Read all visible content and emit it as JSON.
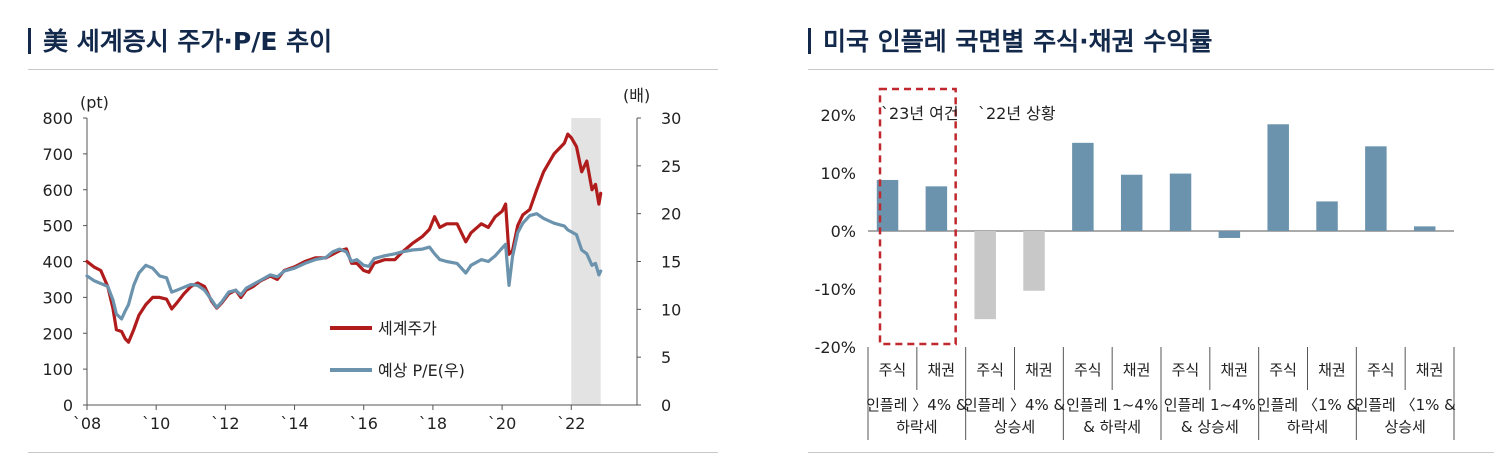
{
  "left_chart": {
    "title": "美 세계증시 주가·P/E  추이",
    "chart_data": {
      "type": "line",
      "y_left_unit": "(pt)",
      "y_right_unit": "(배)",
      "y_left_ticks": [
        "0",
        "100",
        "200",
        "300",
        "400",
        "500",
        "600",
        "700",
        "800"
      ],
      "y_right_ticks": [
        "0",
        "5",
        "10",
        "15",
        "20",
        "25",
        "30"
      ],
      "ylim_left": [
        0,
        800
      ],
      "ylim_right": [
        0,
        30
      ],
      "xlim": [
        2008,
        2023.9
      ],
      "x_ticks": [
        {
          "year": 2008,
          "label": "`08"
        },
        {
          "year": 2010,
          "label": "`10"
        },
        {
          "year": 2012,
          "label": "`12"
        },
        {
          "year": 2014,
          "label": "`14"
        },
        {
          "year": 2016,
          "label": "`16"
        },
        {
          "year": 2018,
          "label": "`18"
        },
        {
          "year": 2020,
          "label": "`20"
        },
        {
          "year": 2022,
          "label": "`22"
        }
      ],
      "shaded_period": [
        2022.0,
        2022.85
      ],
      "legend_position": "middle-right",
      "series": [
        {
          "name": "세계주가",
          "axis": "left",
          "color": "#b01c1c",
          "points": [
            [
              2008.0,
              400
            ],
            [
              2008.2,
              385
            ],
            [
              2008.4,
              375
            ],
            [
              2008.6,
              330
            ],
            [
              2008.75,
              270
            ],
            [
              2008.85,
              210
            ],
            [
              2009.0,
              205
            ],
            [
              2009.1,
              185
            ],
            [
              2009.2,
              175
            ],
            [
              2009.35,
              210
            ],
            [
              2009.5,
              250
            ],
            [
              2009.7,
              280
            ],
            [
              2009.9,
              300
            ],
            [
              2010.1,
              300
            ],
            [
              2010.3,
              295
            ],
            [
              2010.45,
              268
            ],
            [
              2010.6,
              285
            ],
            [
              2010.8,
              310
            ],
            [
              2011.0,
              330
            ],
            [
              2011.2,
              340
            ],
            [
              2011.4,
              330
            ],
            [
              2011.6,
              290
            ],
            [
              2011.75,
              270
            ],
            [
              2011.9,
              285
            ],
            [
              2012.1,
              310
            ],
            [
              2012.3,
              320
            ],
            [
              2012.45,
              300
            ],
            [
              2012.6,
              320
            ],
            [
              2012.8,
              330
            ],
            [
              2013.0,
              345
            ],
            [
              2013.3,
              360
            ],
            [
              2013.5,
              350
            ],
            [
              2013.7,
              375
            ],
            [
              2014.0,
              385
            ],
            [
              2014.3,
              400
            ],
            [
              2014.6,
              410
            ],
            [
              2014.9,
              410
            ],
            [
              2015.1,
              420
            ],
            [
              2015.3,
              430
            ],
            [
              2015.5,
              435
            ],
            [
              2015.65,
              395
            ],
            [
              2015.8,
              395
            ],
            [
              2016.0,
              375
            ],
            [
              2016.15,
              370
            ],
            [
              2016.3,
              395
            ],
            [
              2016.6,
              405
            ],
            [
              2016.9,
              405
            ],
            [
              2017.1,
              425
            ],
            [
              2017.4,
              450
            ],
            [
              2017.7,
              470
            ],
            [
              2017.9,
              490
            ],
            [
              2018.05,
              525
            ],
            [
              2018.2,
              495
            ],
            [
              2018.4,
              505
            ],
            [
              2018.7,
              505
            ],
            [
              2018.95,
              455
            ],
            [
              2019.1,
              480
            ],
            [
              2019.4,
              505
            ],
            [
              2019.6,
              495
            ],
            [
              2019.8,
              525
            ],
            [
              2020.0,
              540
            ],
            [
              2020.1,
              560
            ],
            [
              2020.2,
              420
            ],
            [
              2020.3,
              430
            ],
            [
              2020.45,
              500
            ],
            [
              2020.6,
              530
            ],
            [
              2020.8,
              545
            ],
            [
              2021.0,
              600
            ],
            [
              2021.2,
              650
            ],
            [
              2021.5,
              700
            ],
            [
              2021.8,
              730
            ],
            [
              2021.9,
              755
            ],
            [
              2022.0,
              745
            ],
            [
              2022.15,
              720
            ],
            [
              2022.3,
              650
            ],
            [
              2022.45,
              680
            ],
            [
              2022.6,
              600
            ],
            [
              2022.7,
              615
            ],
            [
              2022.8,
              560
            ],
            [
              2022.85,
              590
            ]
          ]
        },
        {
          "name": "예상 P/E(우)",
          "axis": "right",
          "color": "#6b93ad",
          "points": [
            [
              2008.0,
              13.5
            ],
            [
              2008.2,
              13.0
            ],
            [
              2008.4,
              12.7
            ],
            [
              2008.6,
              12.4
            ],
            [
              2008.75,
              11.0
            ],
            [
              2008.85,
              9.5
            ],
            [
              2009.0,
              9.0
            ],
            [
              2009.1,
              9.8
            ],
            [
              2009.2,
              10.5
            ],
            [
              2009.35,
              12.5
            ],
            [
              2009.5,
              13.8
            ],
            [
              2009.7,
              14.6
            ],
            [
              2009.9,
              14.3
            ],
            [
              2010.1,
              13.5
            ],
            [
              2010.3,
              13.3
            ],
            [
              2010.45,
              11.8
            ],
            [
              2010.6,
              12.0
            ],
            [
              2010.8,
              12.3
            ],
            [
              2011.0,
              12.6
            ],
            [
              2011.2,
              12.5
            ],
            [
              2011.4,
              12.0
            ],
            [
              2011.6,
              11.0
            ],
            [
              2011.75,
              10.2
            ],
            [
              2011.9,
              10.8
            ],
            [
              2012.1,
              11.8
            ],
            [
              2012.3,
              12.0
            ],
            [
              2012.45,
              11.5
            ],
            [
              2012.6,
              12.2
            ],
            [
              2012.8,
              12.6
            ],
            [
              2013.0,
              13.0
            ],
            [
              2013.3,
              13.6
            ],
            [
              2013.5,
              13.4
            ],
            [
              2013.7,
              14.0
            ],
            [
              2014.0,
              14.3
            ],
            [
              2014.3,
              14.8
            ],
            [
              2014.6,
              15.2
            ],
            [
              2014.9,
              15.4
            ],
            [
              2015.1,
              16.0
            ],
            [
              2015.3,
              16.3
            ],
            [
              2015.5,
              16.0
            ],
            [
              2015.65,
              15.0
            ],
            [
              2015.8,
              15.2
            ],
            [
              2016.0,
              14.6
            ],
            [
              2016.15,
              14.5
            ],
            [
              2016.3,
              15.3
            ],
            [
              2016.6,
              15.6
            ],
            [
              2016.9,
              15.8
            ],
            [
              2017.1,
              16.0
            ],
            [
              2017.4,
              16.2
            ],
            [
              2017.7,
              16.3
            ],
            [
              2017.9,
              16.5
            ],
            [
              2018.05,
              15.8
            ],
            [
              2018.2,
              15.2
            ],
            [
              2018.4,
              15.0
            ],
            [
              2018.7,
              14.8
            ],
            [
              2018.95,
              13.8
            ],
            [
              2019.1,
              14.6
            ],
            [
              2019.4,
              15.2
            ],
            [
              2019.6,
              15.0
            ],
            [
              2019.8,
              15.6
            ],
            [
              2020.0,
              16.4
            ],
            [
              2020.1,
              16.8
            ],
            [
              2020.2,
              12.5
            ],
            [
              2020.3,
              15.5
            ],
            [
              2020.45,
              18.0
            ],
            [
              2020.6,
              19.0
            ],
            [
              2020.8,
              19.8
            ],
            [
              2021.0,
              20.0
            ],
            [
              2021.2,
              19.5
            ],
            [
              2021.5,
              19.0
            ],
            [
              2021.8,
              18.7
            ],
            [
              2021.9,
              18.3
            ],
            [
              2022.0,
              18.1
            ],
            [
              2022.15,
              17.8
            ],
            [
              2022.3,
              16.2
            ],
            [
              2022.45,
              15.8
            ],
            [
              2022.6,
              14.6
            ],
            [
              2022.7,
              14.8
            ],
            [
              2022.8,
              13.6
            ],
            [
              2022.85,
              14.0
            ]
          ]
        }
      ]
    }
  },
  "right_chart": {
    "title": "미국 인플레 국면별 주식·채권 수익률",
    "chart_data": {
      "type": "bar",
      "ylim": [
        -20,
        20
      ],
      "y_ticks": [
        "20%",
        "10%",
        "0%",
        "-10%",
        "-20%"
      ],
      "categories": [
        "주식",
        "채권",
        "주식",
        "채권",
        "주식",
        "채권",
        "주식",
        "채권",
        "주식",
        "채권",
        "주식",
        "채권"
      ],
      "values": [
        8.8,
        7.7,
        -15.2,
        -10.3,
        15.2,
        9.7,
        9.9,
        -1.2,
        18.4,
        5.1,
        14.6,
        0.8
      ],
      "bar_colors": [
        "#6b93ad",
        "#6b93ad",
        "#c8c8c8",
        "#c8c8c8",
        "#6b93ad",
        "#6b93ad",
        "#6b93ad",
        "#6b93ad",
        "#6b93ad",
        "#6b93ad",
        "#6b93ad",
        "#6b93ad"
      ],
      "groups": [
        [
          "인플레 〉4% &",
          "하락세"
        ],
        [
          "인플레 〉4% &",
          "상승세"
        ],
        [
          "인플레 1~4%",
          "& 하락세"
        ],
        [
          "인플레 1~4%",
          "& 상승세"
        ],
        [
          "인플레 〈1% &",
          "하락세"
        ],
        [
          "인플레 〈1% &",
          "상승세"
        ]
      ],
      "annotations": [
        "`23년 여건",
        "`22년 상황"
      ],
      "highlight_group": 0,
      "highlight_color": "#c0282d"
    }
  }
}
